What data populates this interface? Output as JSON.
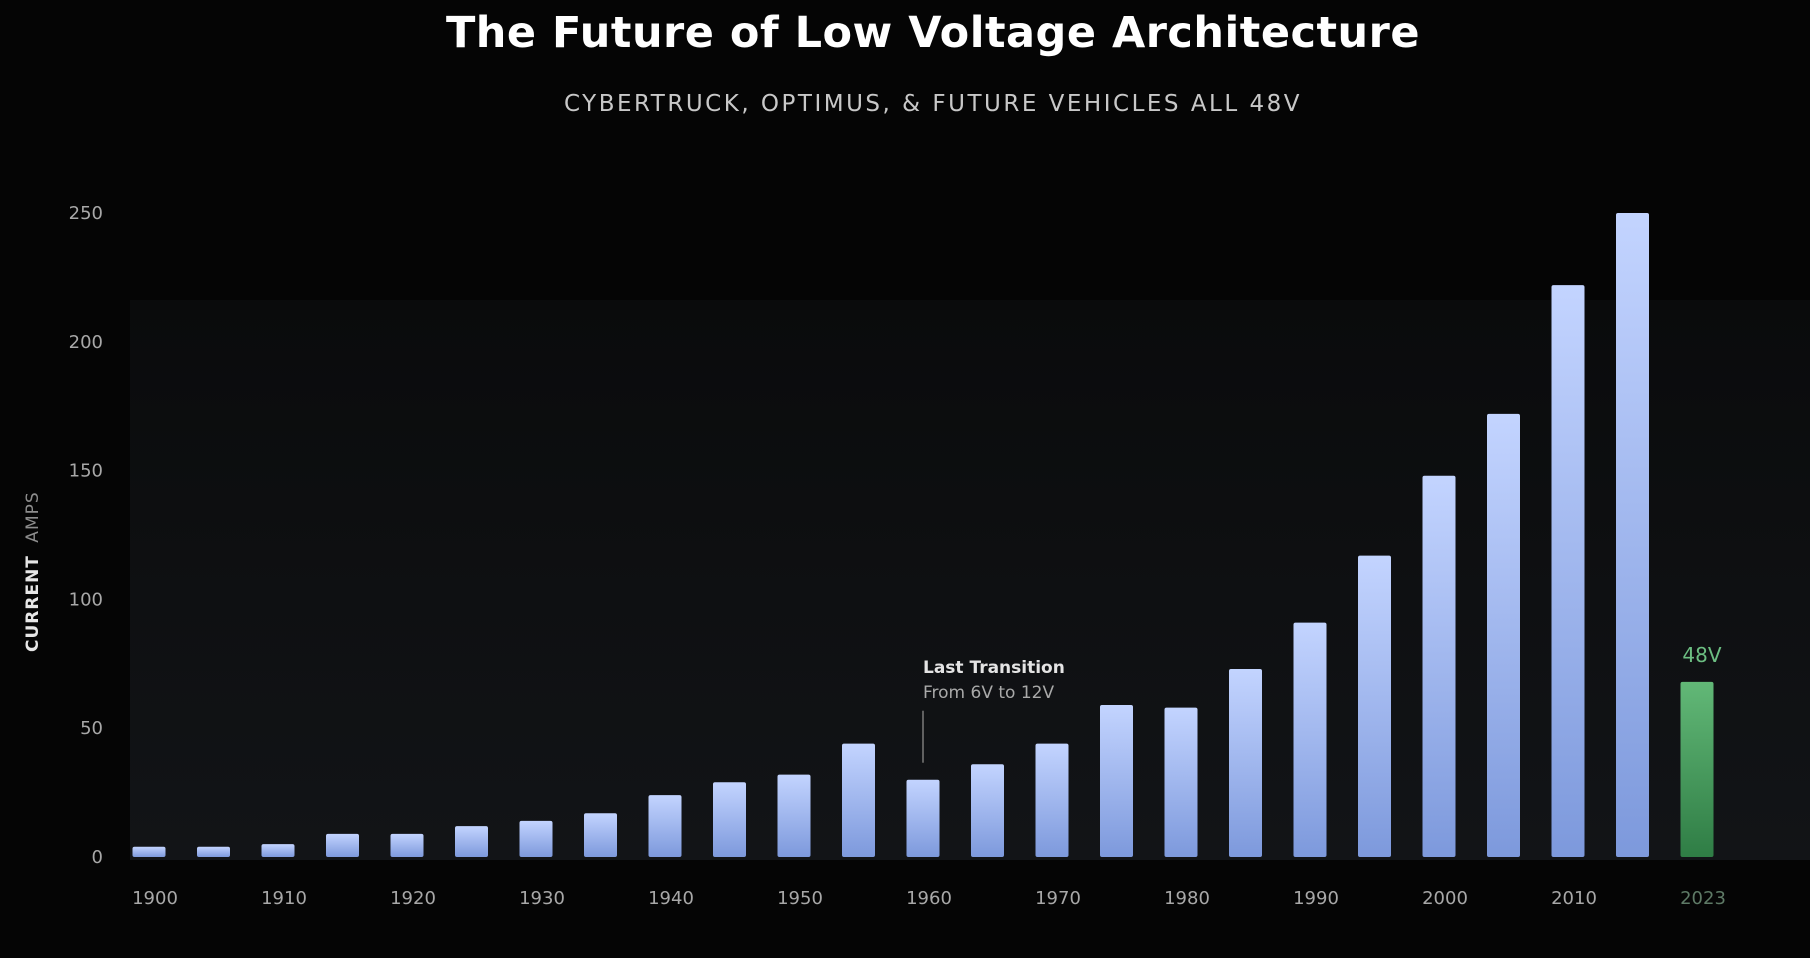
{
  "header": {
    "title": "The Future of Low Voltage Architecture",
    "subtitle": "CYBERTRUCK, OPTIMUS, & FUTURE VEHICLES ALL 48V"
  },
  "colors": {
    "bar_top": "#c3d4ff",
    "bar_bottom": "#7d99dc",
    "highlight_top": "#62b877",
    "highlight_bottom": "#2f7d45",
    "highlight_text": "#6cbe82",
    "axis_text": "#a8a8a8",
    "plot_band": "#121417"
  },
  "chart_data": {
    "type": "bar",
    "title": "The Future of Low Voltage Architecture",
    "subtitle": "CYBERTRUCK, OPTIMUS, & FUTURE VEHICLES ALL 48V",
    "ylabel": {
      "strong": "CURRENT",
      "light": "AMPS"
    },
    "xlabel": "",
    "ylim": [
      0,
      250
    ],
    "yticks": [
      0,
      50,
      100,
      150,
      200,
      250
    ],
    "grid": false,
    "legend": "none",
    "categories": [
      "1900",
      "1905",
      "1910",
      "1915",
      "1920",
      "1925",
      "1930",
      "1935",
      "1940",
      "1945",
      "1950",
      "1955",
      "1960",
      "1965",
      "1970",
      "1975",
      "1980",
      "1985",
      "1990",
      "1995",
      "2000",
      "2005",
      "2010",
      "2015",
      "2023"
    ],
    "xtick_labels": [
      "1900",
      "",
      "1910",
      "",
      "1920",
      "",
      "1930",
      "",
      "1940",
      "",
      "1950",
      "",
      "1960",
      "",
      "1970",
      "",
      "1980",
      "",
      "1990",
      "",
      "2000",
      "",
      "2010",
      "",
      "2023"
    ],
    "values": [
      4,
      4,
      5,
      9,
      9,
      12,
      14,
      17,
      24,
      29,
      32,
      44,
      30,
      36,
      44,
      59,
      58,
      73,
      91,
      117,
      148,
      172,
      222,
      250,
      68
    ],
    "highlight": {
      "category": "2023",
      "label": "48V"
    },
    "annotations": [
      {
        "category": "1960",
        "title": "Last Transition",
        "text": "From 6V to 12V"
      }
    ]
  }
}
